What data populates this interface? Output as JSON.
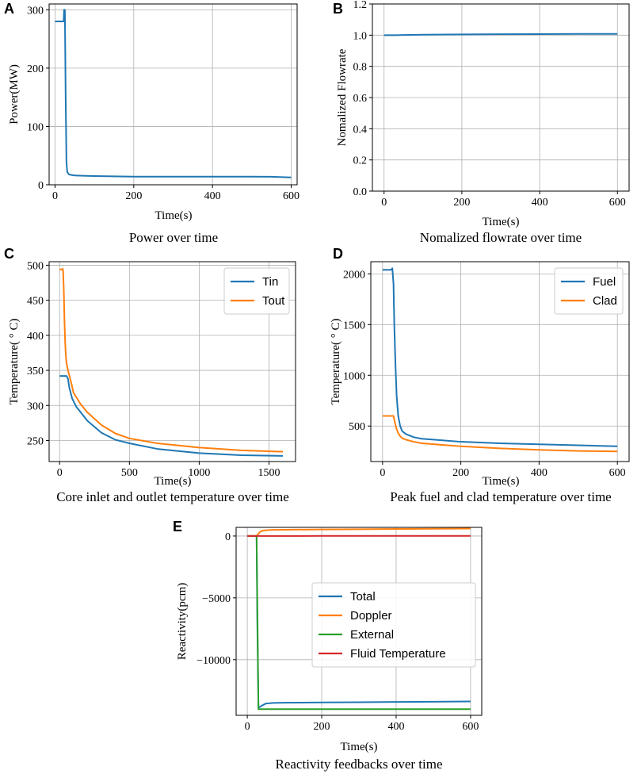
{
  "figure": {
    "colors": {
      "blue": "#1f77b4",
      "orange": "#ff7f0e",
      "green": "#2ca02c",
      "red": "#d62728",
      "grid": "#b0b0b0",
      "axis": "#000000"
    }
  },
  "chart_data": [
    {
      "panel": "A",
      "type": "line",
      "caption": "Power over time",
      "xlabel": "Time(s)",
      "ylabel": "Power(MW)",
      "xlim": [
        -15,
        615
      ],
      "ylim": [
        0,
        310
      ],
      "xticks": [
        0,
        200,
        400,
        600
      ],
      "yticks": [
        0,
        100,
        200,
        300
      ],
      "grid": true,
      "legend": null,
      "series": [
        {
          "name": "Power",
          "color": "blue",
          "x": [
            0,
            22,
            23,
            25,
            27,
            29,
            31,
            35,
            40,
            50,
            70,
            100,
            150,
            200,
            300,
            400,
            500,
            550,
            600
          ],
          "y": [
            280,
            280,
            300,
            300,
            150,
            40,
            22,
            18,
            17,
            16,
            15.5,
            15,
            14.5,
            14,
            14,
            14,
            14,
            13.8,
            12.5
          ]
        }
      ]
    },
    {
      "panel": "B",
      "type": "line",
      "caption": "Nomalized flowrate over time",
      "xlabel": "Time(s)",
      "ylabel": "Nomalized Flowrate",
      "xlim": [
        -30,
        630
      ],
      "ylim": [
        0.0,
        1.2
      ],
      "xticks": [
        0,
        200,
        400,
        600
      ],
      "yticks": [
        0.0,
        0.2,
        0.4,
        0.6,
        0.8,
        1.0,
        1.2
      ],
      "ytick_labels": [
        "0.0",
        "0.2",
        "0.4",
        "0.6",
        "0.8",
        "1.0",
        "1.2"
      ],
      "grid": true,
      "legend": null,
      "series": [
        {
          "name": "Flowrate",
          "color": "blue",
          "x": [
            0,
            20,
            30,
            50,
            100,
            200,
            300,
            400,
            500,
            600
          ],
          "y": [
            1.0,
            1.0,
            1.0,
            1.001,
            1.003,
            1.005,
            1.006,
            1.007,
            1.008,
            1.008
          ]
        }
      ]
    },
    {
      "panel": "C",
      "type": "line",
      "caption": "Core inlet and outlet temperature over time",
      "xlabel": "Time(s)",
      "ylabel": "Temperature( ° C)",
      "xlim": [
        -75,
        1690
      ],
      "ylim": [
        220,
        505
      ],
      "xticks": [
        0,
        500,
        1000,
        1500
      ],
      "yticks": [
        250,
        300,
        350,
        400,
        450,
        500
      ],
      "grid": true,
      "legend": {
        "position": "top-right",
        "entries": [
          "Tin",
          "Tout"
        ]
      },
      "series": [
        {
          "name": "Tin",
          "color": "blue",
          "x": [
            0,
            50,
            60,
            70,
            90,
            120,
            200,
            300,
            400,
            500,
            700,
            1000,
            1300,
            1600
          ],
          "y": [
            342,
            342,
            338,
            325,
            310,
            298,
            278,
            261,
            251,
            246,
            238,
            232,
            229,
            228
          ]
        },
        {
          "name": "Tout",
          "color": "orange",
          "x": [
            0,
            20,
            22,
            25,
            30,
            35,
            40,
            45,
            50,
            60,
            80,
            100,
            150,
            200,
            300,
            400,
            500,
            700,
            1000,
            1300,
            1600
          ],
          "y": [
            494,
            494,
            495,
            492,
            465,
            420,
            390,
            370,
            360,
            350,
            335,
            318,
            302,
            290,
            272,
            260,
            253,
            246,
            240,
            236,
            234
          ]
        }
      ]
    },
    {
      "panel": "D",
      "type": "line",
      "caption": "Peak fuel and clad temperature over time",
      "xlabel": "Time(s)",
      "ylabel": "Temperature( ° C)",
      "xlim": [
        -30,
        630
      ],
      "ylim": [
        150,
        2120
      ],
      "xticks": [
        0,
        200,
        400,
        600
      ],
      "yticks": [
        500,
        1000,
        1500,
        2000
      ],
      "grid": true,
      "legend": {
        "position": "top-right",
        "entries": [
          "Fuel",
          "Clad"
        ]
      },
      "series": [
        {
          "name": "Fuel",
          "color": "blue",
          "x": [
            0,
            22,
            25,
            28,
            30,
            33,
            36,
            40,
            45,
            50,
            60,
            80,
            100,
            150,
            200,
            300,
            400,
            500,
            600
          ],
          "y": [
            2040,
            2040,
            2055,
            1900,
            1500,
            1100,
            800,
            600,
            500,
            450,
            420,
            390,
            375,
            360,
            345,
            330,
            320,
            310,
            300
          ]
        },
        {
          "name": "Clad",
          "color": "orange",
          "x": [
            0,
            28,
            30,
            35,
            40,
            45,
            50,
            60,
            80,
            100,
            150,
            200,
            300,
            400,
            500,
            600
          ],
          "y": [
            600,
            600,
            560,
            480,
            430,
            400,
            380,
            365,
            345,
            330,
            315,
            300,
            280,
            265,
            255,
            250
          ]
        }
      ]
    },
    {
      "panel": "E",
      "type": "line",
      "caption": "Reactivity feedbacks over time",
      "xlabel": "Time(s)",
      "ylabel": "Reactivity(pcm)",
      "xlim": [
        -30,
        630
      ],
      "ylim": [
        -14500,
        700
      ],
      "xticks": [
        0,
        200,
        400,
        600
      ],
      "yticks": [
        -10000,
        -5000,
        0
      ],
      "ytick_labels": [
        "−10000",
        "−5000",
        "0"
      ],
      "grid": true,
      "legend": {
        "position": "center-right",
        "entries": [
          "Total",
          "Doppler",
          "External",
          "Fluid Temperature"
        ]
      },
      "series": [
        {
          "name": "Total",
          "color": "blue",
          "x": [
            0,
            25,
            27,
            30,
            35,
            40,
            50,
            70,
            100,
            200,
            300,
            400,
            500,
            600
          ],
          "y": [
            0,
            0,
            -7000,
            -13900,
            -13800,
            -13700,
            -13550,
            -13500,
            -13480,
            -13460,
            -13440,
            -13420,
            -13400,
            -13380
          ]
        },
        {
          "name": "Doppler",
          "color": "orange",
          "x": [
            0,
            25,
            30,
            35,
            40,
            50,
            70,
            100,
            200,
            300,
            400,
            500,
            600
          ],
          "y": [
            0,
            0,
            200,
            350,
            420,
            470,
            500,
            510,
            530,
            550,
            570,
            585,
            600
          ]
        },
        {
          "name": "External",
          "color": "green",
          "x": [
            0,
            25,
            30,
            100,
            200,
            300,
            400,
            500,
            600
          ],
          "y": [
            0,
            0,
            -14000,
            -14000,
            -14000,
            -14000,
            -14000,
            -14000,
            -14000
          ]
        },
        {
          "name": "Fluid Temperature",
          "color": "red",
          "x": [
            0,
            25,
            100,
            200,
            300,
            400,
            500,
            600
          ],
          "y": [
            0,
            0,
            5,
            8,
            10,
            12,
            13,
            14
          ]
        }
      ]
    }
  ]
}
